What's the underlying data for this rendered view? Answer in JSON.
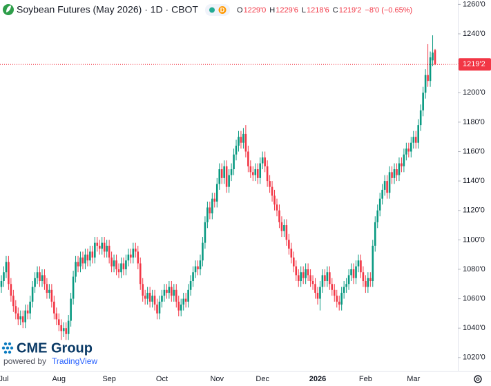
{
  "chart_data": {
    "type": "candlestick",
    "title": "Soybean Futures (May 2026) · 1D · CBOT",
    "badge": "D",
    "ohlc_legend": [
      {
        "label": "O",
        "value": "1229'0"
      },
      {
        "label": "H",
        "value": "1229'6"
      },
      {
        "label": "L",
        "value": "1218'6"
      },
      {
        "label": "C",
        "value": "1219'2"
      }
    ],
    "change": "−8'0 (−0.65%)",
    "branding": {
      "logo": "CME Group",
      "powered": "powered by",
      "provider": "TradingView"
    },
    "up_color": "#089981",
    "down_color": "#f23645",
    "grid": false,
    "ylim": [
      1011,
      1263
    ],
    "yticks": [
      {
        "value": 1020,
        "label": "1020'0"
      },
      {
        "value": 1040,
        "label": "1040'0"
      },
      {
        "value": 1060,
        "label": "1060'0"
      },
      {
        "value": 1080,
        "label": "1080'0"
      },
      {
        "value": 1100,
        "label": "1100'0"
      },
      {
        "value": 1120,
        "label": "1120'0"
      },
      {
        "value": 1140,
        "label": "1140'0"
      },
      {
        "value": 1160,
        "label": "1160'0"
      },
      {
        "value": 1180,
        "label": "1180'0"
      },
      {
        "value": 1200,
        "label": "1200'0"
      },
      {
        "value": 1220,
        "label": "1220'0"
      },
      {
        "value": 1240,
        "label": "1240'0"
      },
      {
        "value": 1260,
        "label": "1260'0"
      }
    ],
    "last_price": {
      "value": 1219.25,
      "label": "1219'2"
    },
    "categories": [
      null,
      "Jul",
      null,
      null,
      null,
      null,
      null,
      null,
      null,
      null,
      null,
      null,
      null,
      null,
      null,
      null,
      null,
      null,
      null,
      null,
      null,
      null,
      null,
      null,
      "Aug",
      null,
      null,
      null,
      null,
      null,
      null,
      null,
      null,
      null,
      null,
      null,
      null,
      null,
      null,
      null,
      null,
      null,
      null,
      null,
      null,
      "Sep",
      null,
      null,
      null,
      null,
      null,
      null,
      null,
      null,
      null,
      null,
      null,
      null,
      null,
      null,
      null,
      null,
      null,
      null,
      null,
      null,
      null,
      "Oct",
      null,
      null,
      null,
      null,
      null,
      null,
      null,
      null,
      null,
      null,
      null,
      null,
      null,
      null,
      null,
      null,
      null,
      null,
      null,
      null,
      null,
      null,
      "Nov",
      null,
      null,
      null,
      null,
      null,
      null,
      null,
      null,
      null,
      null,
      null,
      null,
      null,
      null,
      null,
      null,
      null,
      null,
      "Dec",
      null,
      null,
      null,
      null,
      null,
      null,
      null,
      null,
      null,
      null,
      null,
      null,
      null,
      null,
      null,
      null,
      null,
      null,
      null,
      null,
      null,
      null,
      "2026",
      null,
      null,
      null,
      null,
      null,
      null,
      null,
      null,
      null,
      null,
      null,
      null,
      null,
      null,
      null,
      null,
      null,
      null,
      null,
      "Feb",
      null,
      null,
      null,
      null,
      null,
      null,
      null,
      null,
      null,
      null,
      null,
      null,
      null,
      null,
      null,
      null,
      null,
      null,
      null,
      "Mar",
      null,
      null,
      null,
      null,
      null,
      null,
      null,
      null,
      null
    ],
    "ohlc": {
      "open": [
        1068,
        1072,
        1078,
        1085,
        1070,
        1062,
        1055,
        1050,
        1046,
        1048,
        1044,
        1052,
        1050,
        1058,
        1068,
        1074,
        1078,
        1072,
        1076,
        1070,
        1064,
        1066,
        1058,
        1050,
        1046,
        1042,
        1038,
        1040,
        1036,
        1045,
        1060,
        1075,
        1085,
        1082,
        1088,
        1084,
        1090,
        1086,
        1092,
        1088,
        1098,
        1096,
        1094,
        1098,
        1092,
        1096,
        1088,
        1082,
        1086,
        1080,
        1078,
        1084,
        1080,
        1086,
        1090,
        1088,
        1094,
        1092,
        1084,
        1070,
        1062,
        1060,
        1064,
        1058,
        1062,
        1056,
        1050,
        1058,
        1062,
        1066,
        1064,
        1068,
        1062,
        1066,
        1058,
        1052,
        1056,
        1060,
        1058,
        1066,
        1072,
        1078,
        1082,
        1080,
        1086,
        1098,
        1112,
        1122,
        1118,
        1128,
        1126,
        1138,
        1148,
        1142,
        1150,
        1136,
        1144,
        1148,
        1158,
        1164,
        1170,
        1166,
        1172,
        1160,
        1150,
        1146,
        1144,
        1148,
        1142,
        1152,
        1156,
        1150,
        1140,
        1136,
        1130,
        1124,
        1120,
        1112,
        1106,
        1110,
        1100,
        1094,
        1088,
        1082,
        1076,
        1072,
        1078,
        1074,
        1080,
        1076,
        1072,
        1070,
        1064,
        1060,
        1068,
        1076,
        1072,
        1078,
        1070,
        1066,
        1062,
        1058,
        1056,
        1064,
        1068,
        1070,
        1076,
        1080,
        1074,
        1082,
        1086,
        1078,
        1072,
        1068,
        1074,
        1072,
        1096,
        1112,
        1120,
        1128,
        1134,
        1140,
        1132,
        1146,
        1142,
        1148,
        1144,
        1152,
        1150,
        1158,
        1162,
        1160,
        1166,
        1170,
        1166,
        1178,
        1188,
        1200,
        1212,
        1208,
        1222,
        1229
      ],
      "high": [
        1076,
        1082,
        1089,
        1089,
        1074,
        1066,
        1059,
        1054,
        1052,
        1052,
        1056,
        1056,
        1062,
        1072,
        1078,
        1082,
        1082,
        1080,
        1080,
        1074,
        1070,
        1070,
        1062,
        1054,
        1050,
        1046,
        1044,
        1044,
        1049,
        1064,
        1079,
        1089,
        1089,
        1092,
        1092,
        1094,
        1094,
        1096,
        1096,
        1102,
        1102,
        1100,
        1102,
        1102,
        1100,
        1100,
        1092,
        1090,
        1090,
        1084,
        1088,
        1088,
        1090,
        1094,
        1094,
        1098,
        1098,
        1096,
        1088,
        1074,
        1066,
        1068,
        1068,
        1066,
        1066,
        1060,
        1062,
        1066,
        1070,
        1070,
        1072,
        1072,
        1070,
        1070,
        1062,
        1060,
        1064,
        1064,
        1070,
        1076,
        1082,
        1086,
        1086,
        1090,
        1102,
        1116,
        1126,
        1126,
        1132,
        1132,
        1142,
        1152,
        1152,
        1154,
        1154,
        1148,
        1152,
        1162,
        1168,
        1174,
        1174,
        1176,
        1178,
        1164,
        1154,
        1150,
        1152,
        1152,
        1156,
        1160,
        1160,
        1154,
        1144,
        1140,
        1134,
        1128,
        1124,
        1116,
        1114,
        1114,
        1104,
        1098,
        1092,
        1086,
        1080,
        1082,
        1082,
        1084,
        1084,
        1080,
        1076,
        1074,
        1068,
        1072,
        1080,
        1080,
        1082,
        1082,
        1074,
        1070,
        1066,
        1062,
        1068,
        1072,
        1074,
        1080,
        1084,
        1084,
        1086,
        1090,
        1090,
        1082,
        1076,
        1078,
        1078,
        1100,
        1116,
        1124,
        1132,
        1138,
        1144,
        1144,
        1150,
        1150,
        1152,
        1152,
        1156,
        1156,
        1162,
        1166,
        1166,
        1170,
        1174,
        1174,
        1182,
        1192,
        1204,
        1216,
        1233,
        1228,
        1239,
        1229.75
      ],
      "low": [
        1064,
        1068,
        1074,
        1066,
        1058,
        1051,
        1046,
        1042,
        1042,
        1040,
        1040,
        1046,
        1046,
        1054,
        1064,
        1070,
        1068,
        1068,
        1066,
        1060,
        1060,
        1054,
        1046,
        1042,
        1038,
        1032,
        1034,
        1032,
        1032,
        1041,
        1056,
        1071,
        1078,
        1078,
        1080,
        1080,
        1082,
        1082,
        1084,
        1084,
        1092,
        1090,
        1090,
        1088,
        1088,
        1084,
        1078,
        1078,
        1076,
        1074,
        1074,
        1076,
        1076,
        1082,
        1084,
        1084,
        1088,
        1080,
        1066,
        1058,
        1056,
        1056,
        1054,
        1054,
        1052,
        1046,
        1046,
        1054,
        1058,
        1060,
        1060,
        1058,
        1058,
        1054,
        1048,
        1048,
        1052,
        1054,
        1054,
        1062,
        1068,
        1074,
        1076,
        1076,
        1082,
        1094,
        1108,
        1114,
        1114,
        1122,
        1122,
        1134,
        1138,
        1138,
        1132,
        1132,
        1140,
        1144,
        1154,
        1160,
        1162,
        1162,
        1156,
        1146,
        1142,
        1140,
        1140,
        1138,
        1138,
        1148,
        1146,
        1136,
        1132,
        1126,
        1120,
        1116,
        1108,
        1102,
        1102,
        1096,
        1090,
        1084,
        1078,
        1072,
        1068,
        1068,
        1070,
        1070,
        1072,
        1068,
        1066,
        1060,
        1056,
        1052,
        1064,
        1068,
        1068,
        1066,
        1062,
        1058,
        1054,
        1052,
        1052,
        1060,
        1064,
        1066,
        1072,
        1070,
        1070,
        1078,
        1074,
        1068,
        1064,
        1064,
        1068,
        1068,
        1092,
        1108,
        1116,
        1124,
        1130,
        1128,
        1128,
        1138,
        1138,
        1140,
        1140,
        1146,
        1146,
        1154,
        1156,
        1156,
        1162,
        1162,
        1162,
        1174,
        1184,
        1196,
        1204,
        1204,
        1218,
        1218.75
      ],
      "close": [
        1072,
        1078,
        1085,
        1070,
        1062,
        1055,
        1050,
        1046,
        1048,
        1044,
        1052,
        1050,
        1058,
        1068,
        1074,
        1078,
        1072,
        1076,
        1070,
        1064,
        1066,
        1058,
        1050,
        1046,
        1042,
        1038,
        1040,
        1036,
        1045,
        1060,
        1075,
        1085,
        1082,
        1088,
        1084,
        1090,
        1086,
        1092,
        1088,
        1098,
        1096,
        1094,
        1098,
        1092,
        1096,
        1088,
        1082,
        1086,
        1080,
        1078,
        1084,
        1080,
        1086,
        1090,
        1088,
        1094,
        1092,
        1084,
        1070,
        1062,
        1060,
        1064,
        1058,
        1062,
        1056,
        1050,
        1058,
        1062,
        1066,
        1064,
        1068,
        1062,
        1066,
        1058,
        1052,
        1056,
        1060,
        1058,
        1066,
        1072,
        1078,
        1082,
        1080,
        1086,
        1098,
        1112,
        1122,
        1118,
        1128,
        1126,
        1138,
        1148,
        1142,
        1150,
        1136,
        1144,
        1148,
        1158,
        1164,
        1170,
        1166,
        1172,
        1160,
        1150,
        1146,
        1144,
        1148,
        1142,
        1152,
        1156,
        1150,
        1140,
        1136,
        1130,
        1124,
        1120,
        1112,
        1106,
        1110,
        1100,
        1094,
        1088,
        1082,
        1076,
        1072,
        1078,
        1074,
        1080,
        1076,
        1072,
        1070,
        1064,
        1060,
        1068,
        1076,
        1072,
        1078,
        1070,
        1066,
        1062,
        1058,
        1056,
        1064,
        1068,
        1070,
        1076,
        1080,
        1074,
        1082,
        1086,
        1078,
        1072,
        1068,
        1074,
        1072,
        1096,
        1112,
        1120,
        1128,
        1134,
        1140,
        1132,
        1146,
        1142,
        1148,
        1144,
        1152,
        1150,
        1158,
        1162,
        1160,
        1166,
        1170,
        1166,
        1178,
        1188,
        1200,
        1212,
        1208,
        1224,
        1227.25,
        1219.25
      ]
    }
  }
}
